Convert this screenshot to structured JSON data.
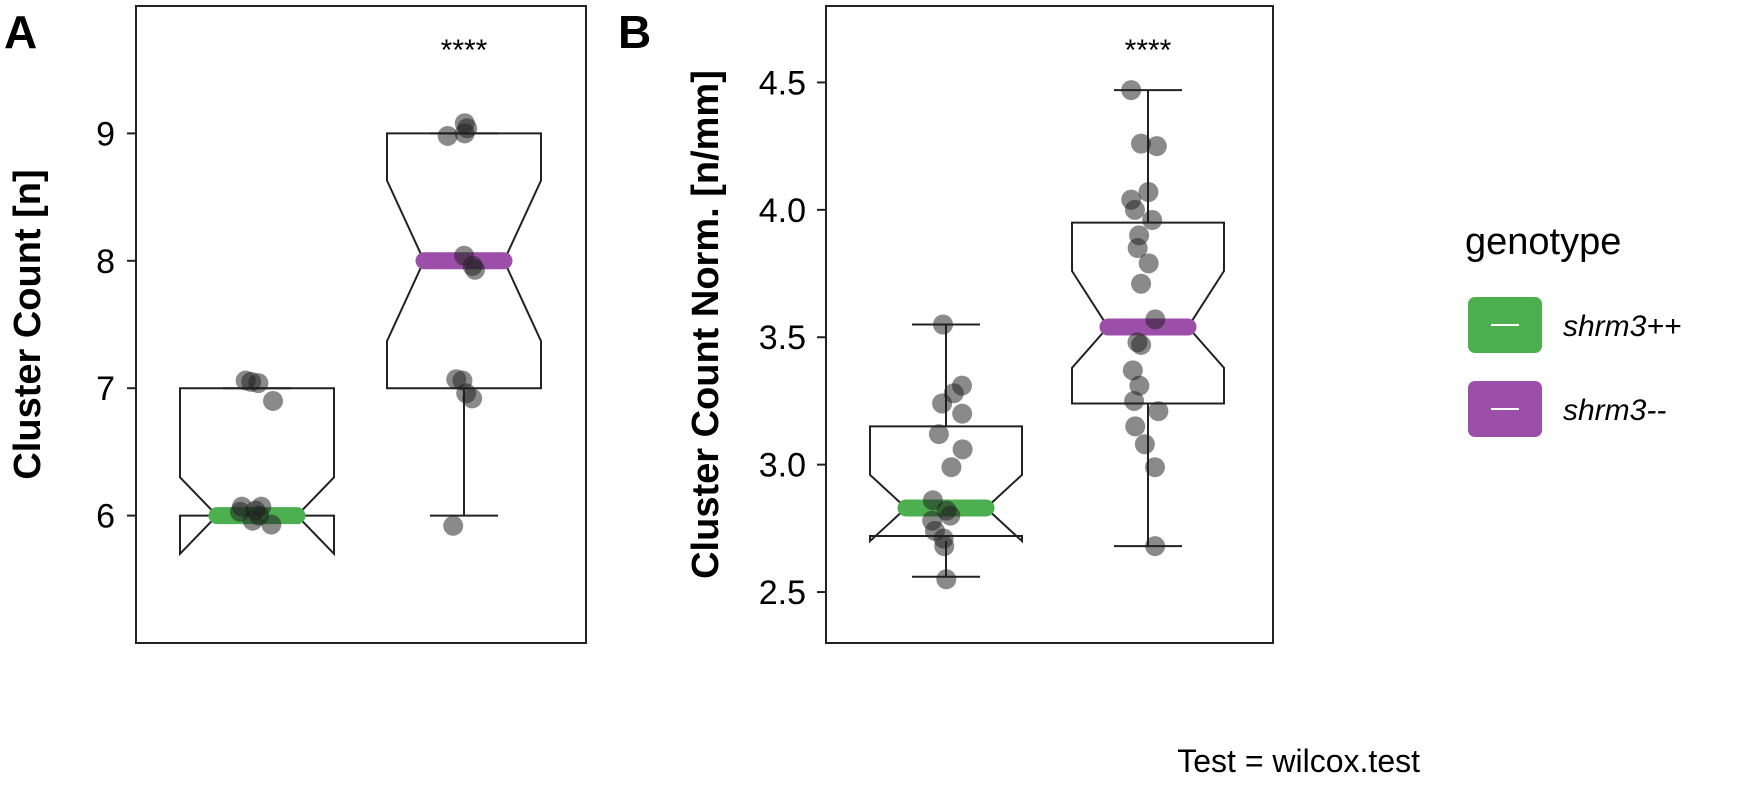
{
  "chart_data": [
    {
      "panel_label": "A",
      "type": "boxplot",
      "ylabel": "Cluster Count [n]",
      "ylim": [
        5.0,
        10.0
      ],
      "yticks": [
        6,
        7,
        8,
        9
      ],
      "notched": true,
      "significance": "****",
      "groups": [
        {
          "name": "shrm3++",
          "color": "#4caf50",
          "q1": 6.0,
          "median": 6.0,
          "q3": 7.0,
          "whisker_low": 6.0,
          "whisker_high": 7.0,
          "notch_low": 5.7,
          "notch_high": 6.3,
          "points": [
            6.03,
            5.93,
            6.07,
            6.0,
            5.96,
            6.04,
            6.07,
            7.06,
            7.05,
            7.04,
            6.9
          ]
        },
        {
          "name": "shrm3--",
          "color": "#9c4fa8",
          "q1": 7.0,
          "median": 8.0,
          "q3": 9.0,
          "whisker_low": 6.0,
          "whisker_high": 9.0,
          "notch_low": 7.37,
          "notch_high": 8.63,
          "points": [
            5.92,
            6.92,
            6.96,
            7.06,
            7.07,
            7.93,
            7.96,
            8.04,
            9.08,
            9.0,
            8.98,
            9.04
          ]
        }
      ]
    },
    {
      "panel_label": "B",
      "type": "boxplot",
      "ylabel": "Cluster Count Norm. [n/mm]",
      "ylim": [
        2.3,
        4.8
      ],
      "yticks": [
        2.5,
        3.0,
        3.5,
        4.0,
        4.5
      ],
      "notched": true,
      "significance": "****",
      "groups": [
        {
          "name": "shrm3++",
          "color": "#4caf50",
          "q1": 2.72,
          "median": 2.83,
          "q3": 3.15,
          "whisker_low": 2.56,
          "whisker_high": 3.55,
          "notch_low": 2.7,
          "notch_high": 2.96,
          "points": [
            2.55,
            2.68,
            2.71,
            2.74,
            2.78,
            2.82,
            2.86,
            2.8,
            2.99,
            3.06,
            3.12,
            3.2,
            3.24,
            3.28,
            3.31,
            3.55
          ]
        },
        {
          "name": "shrm3--",
          "color": "#9c4fa8",
          "q1": 3.24,
          "median": 3.54,
          "q3": 3.95,
          "whisker_low": 2.68,
          "whisker_high": 4.47,
          "notch_low": 3.38,
          "notch_high": 3.76,
          "points": [
            2.68,
            2.99,
            3.08,
            3.15,
            3.21,
            3.25,
            3.31,
            3.37,
            3.47,
            3.48,
            3.57,
            3.71,
            3.79,
            3.85,
            3.9,
            3.96,
            4.0,
            4.04,
            4.07,
            4.25,
            4.26,
            4.47
          ]
        }
      ]
    }
  ],
  "legend": {
    "title": "genotype",
    "items": [
      {
        "label": "shrm3++",
        "color": "#4caf50"
      },
      {
        "label": "shrm3--",
        "color": "#9c4fa8"
      }
    ]
  },
  "caption": "Test = wilcox.test"
}
